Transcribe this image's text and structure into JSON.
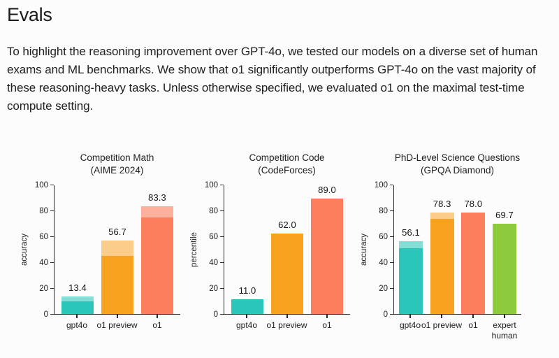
{
  "page": {
    "heading": "Evals",
    "intro": "To highlight the reasoning improvement over GPT-4o, we tested our models on a diverse set of human exams and ML benchmarks. We show that o1 significantly outperforms GPT-4o on the vast majority of these reasoning-heavy tasks. Unless otherwise specified, we evaluated o1 on the maximal test-time compute setting."
  },
  "palette": {
    "axis": "#2b2b2b",
    "text": "#1d1d1d",
    "teal": {
      "solid": "#2bc6ba",
      "light": "#85ded6"
    },
    "orange": {
      "solid": "#f9a21f",
      "light": "#fbcc8a"
    },
    "coral": {
      "solid": "#fc7e5d",
      "light": "#fdb19d"
    },
    "green": {
      "solid": "#8ecb3c",
      "light": "#8ecb3c"
    }
  },
  "chart_data": [
    {
      "type": "bar",
      "title": "Competition Math",
      "subtitle": "(AIME 2024)",
      "ylabel": "accuracy",
      "ylim": [
        0,
        100
      ],
      "yticks": [
        0,
        20,
        40,
        60,
        80,
        100
      ],
      "grid": false,
      "legend": "none",
      "categories": [
        "gpt4o",
        "o1 preview",
        "o1"
      ],
      "bars": [
        {
          "category": "gpt4o",
          "color": "teal",
          "label": "13.4",
          "total": 13.4,
          "solid": 9.3
        },
        {
          "category": "o1 preview",
          "color": "orange",
          "label": "56.7",
          "total": 56.7,
          "solid": 44.6
        },
        {
          "category": "o1",
          "color": "coral",
          "label": "83.3",
          "total": 83.3,
          "solid": 74.4
        }
      ]
    },
    {
      "type": "bar",
      "title": "Competition Code",
      "subtitle": "(CodeForces)",
      "ylabel": "percentile",
      "ylim": [
        0,
        100
      ],
      "yticks": [
        0,
        20,
        40,
        60,
        80,
        100
      ],
      "grid": false,
      "legend": "none",
      "categories": [
        "gpt4o",
        "o1 preview",
        "o1"
      ],
      "bars": [
        {
          "category": "gpt4o",
          "color": "teal",
          "label": "11.0",
          "total": 11.0,
          "solid": 11.0
        },
        {
          "category": "o1 preview",
          "color": "orange",
          "label": "62.0",
          "total": 62.0,
          "solid": 62.0
        },
        {
          "category": "o1",
          "color": "coral",
          "label": "89.0",
          "total": 89.0,
          "solid": 89.0
        }
      ]
    },
    {
      "type": "bar",
      "title": "PhD-Level Science Questions",
      "subtitle": "(GPQA Diamond)",
      "ylabel": "accuracy",
      "ylim": [
        0,
        100
      ],
      "yticks": [
        0,
        20,
        40,
        60,
        80,
        100
      ],
      "grid": false,
      "legend": "none",
      "categories": [
        "gpt4o",
        "o1 preview",
        "o1",
        "expert human"
      ],
      "bars": [
        {
          "category": "gpt4o",
          "color": "teal",
          "label": "56.1",
          "total": 56.1,
          "solid": 50.6
        },
        {
          "category": "o1 preview",
          "color": "orange",
          "label": "78.3",
          "total": 78.3,
          "solid": 73.3
        },
        {
          "category": "o1",
          "color": "coral",
          "label": "78.0",
          "total": 78.0,
          "solid": 78.0
        },
        {
          "category": "expert human",
          "color": "green",
          "label": "69.7",
          "total": 69.7,
          "solid": 69.7
        }
      ]
    }
  ]
}
